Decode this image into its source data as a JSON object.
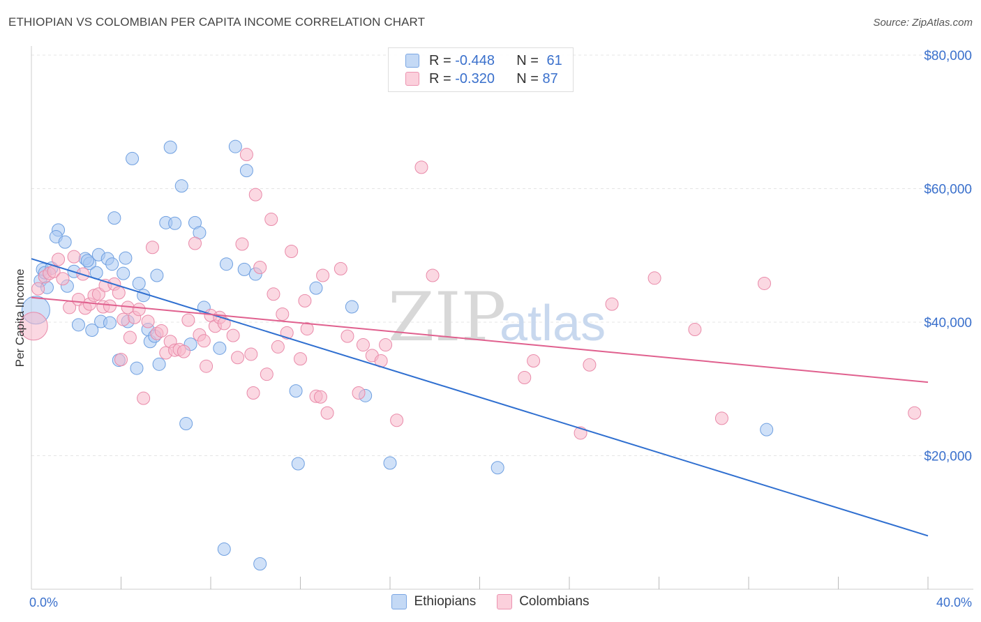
{
  "header": {
    "title": "ETHIOPIAN VS COLOMBIAN PER CAPITA INCOME CORRELATION CHART",
    "source": "Source: ZipAtlas.com"
  },
  "watermark": {
    "part1": "ZIP",
    "part2": "atlas"
  },
  "legend": {
    "rows": [
      {
        "r_label": "R =",
        "r_value": "-0.448",
        "n_label": "N =",
        "n_value": "61",
        "color": "#a9c8f2"
      },
      {
        "r_label": "R =",
        "r_value": "-0.320",
        "n_label": "N =",
        "n_value": "87",
        "color": "#f7b8cb"
      }
    ]
  },
  "bottom_legend": [
    {
      "label": "Ethiopians",
      "color": "#a9c8f2"
    },
    {
      "label": "Colombians",
      "color": "#f7b8cb"
    }
  ],
  "chart_data": {
    "type": "scatter",
    "title": "ETHIOPIAN VS COLOMBIAN PER CAPITA INCOME CORRELATION CHART",
    "xlabel": "",
    "ylabel": "Per Capita Income",
    "xlim": [
      0,
      40
    ],
    "ylim": [
      0,
      80000
    ],
    "x_tick_labels": [
      "0.0%",
      "40.0%"
    ],
    "y_ticks": [
      20000,
      40000,
      60000,
      80000
    ],
    "y_tick_labels": [
      "$20,000",
      "$40,000",
      "$60,000",
      "$80,000"
    ],
    "grid": true,
    "series": [
      {
        "name": "Ethiopians",
        "color": "#6e9fe0",
        "fill": "#a9c8f2",
        "trend": {
          "x": [
            0,
            40
          ],
          "y": [
            49500,
            8000
          ],
          "color": "#2f6fd0"
        },
        "points": [
          [
            0.2,
            41800
          ],
          [
            0.4,
            46200
          ],
          [
            0.5,
            47900
          ],
          [
            0.6,
            47400
          ],
          [
            0.7,
            45200
          ],
          [
            0.9,
            48100
          ],
          [
            1.2,
            53800
          ],
          [
            1.1,
            52800
          ],
          [
            1.5,
            52000
          ],
          [
            1.6,
            45400
          ],
          [
            1.9,
            47600
          ],
          [
            2.1,
            39600
          ],
          [
            2.4,
            49500
          ],
          [
            2.6,
            48800
          ],
          [
            2.7,
            38800
          ],
          [
            2.9,
            47400
          ],
          [
            3.0,
            50100
          ],
          [
            3.1,
            40100
          ],
          [
            3.4,
            49500
          ],
          [
            3.5,
            39900
          ],
          [
            3.6,
            48700
          ],
          [
            3.7,
            55600
          ],
          [
            3.9,
            34300
          ],
          [
            4.1,
            47300
          ],
          [
            4.2,
            49600
          ],
          [
            4.3,
            40100
          ],
          [
            4.5,
            64500
          ],
          [
            4.7,
            33100
          ],
          [
            4.8,
            45800
          ],
          [
            5.0,
            44000
          ],
          [
            5.2,
            38900
          ],
          [
            5.3,
            37100
          ],
          [
            5.5,
            37900
          ],
          [
            5.6,
            47000
          ],
          [
            5.7,
            33700
          ],
          [
            6.0,
            54900
          ],
          [
            6.2,
            66200
          ],
          [
            6.4,
            54800
          ],
          [
            6.7,
            60400
          ],
          [
            6.9,
            24800
          ],
          [
            7.1,
            36700
          ],
          [
            7.3,
            54900
          ],
          [
            7.5,
            53400
          ],
          [
            7.7,
            42200
          ],
          [
            8.4,
            36100
          ],
          [
            8.7,
            48700
          ],
          [
            9.1,
            66300
          ],
          [
            9.5,
            47900
          ],
          [
            9.6,
            62700
          ],
          [
            10.0,
            47200
          ],
          [
            10.2,
            3800
          ],
          [
            11.8,
            29700
          ],
          [
            11.9,
            18800
          ],
          [
            12.7,
            45100
          ],
          [
            14.3,
            42300
          ],
          [
            14.9,
            29000
          ],
          [
            16.0,
            18900
          ],
          [
            20.8,
            18200
          ],
          [
            8.6,
            6000
          ],
          [
            32.8,
            23900
          ],
          [
            2.5,
            49200
          ]
        ]
      },
      {
        "name": "Colombians",
        "color": "#e98aa9",
        "fill": "#f7b8cb",
        "trend": {
          "x": [
            0,
            40
          ],
          "y": [
            43700,
            31000
          ],
          "color": "#e0608e"
        },
        "points": [
          [
            0.1,
            39400
          ],
          [
            0.3,
            45000
          ],
          [
            0.6,
            46800
          ],
          [
            0.8,
            47300
          ],
          [
            1.0,
            47600
          ],
          [
            1.2,
            49400
          ],
          [
            1.4,
            46500
          ],
          [
            1.7,
            42200
          ],
          [
            1.9,
            49800
          ],
          [
            2.1,
            43400
          ],
          [
            2.3,
            47200
          ],
          [
            2.4,
            42100
          ],
          [
            2.6,
            42700
          ],
          [
            2.8,
            44000
          ],
          [
            3.0,
            44200
          ],
          [
            3.2,
            42300
          ],
          [
            3.3,
            45500
          ],
          [
            3.5,
            42400
          ],
          [
            3.7,
            45700
          ],
          [
            3.9,
            44400
          ],
          [
            4.0,
            34400
          ],
          [
            4.1,
            40400
          ],
          [
            4.3,
            42200
          ],
          [
            4.4,
            37700
          ],
          [
            4.6,
            40700
          ],
          [
            4.8,
            41900
          ],
          [
            5.0,
            28600
          ],
          [
            5.2,
            40100
          ],
          [
            5.4,
            51200
          ],
          [
            5.6,
            38300
          ],
          [
            5.8,
            38700
          ],
          [
            6.0,
            35400
          ],
          [
            6.2,
            37100
          ],
          [
            6.4,
            35800
          ],
          [
            6.6,
            35900
          ],
          [
            6.8,
            35600
          ],
          [
            7.0,
            40300
          ],
          [
            7.3,
            51800
          ],
          [
            7.5,
            38100
          ],
          [
            7.7,
            37200
          ],
          [
            7.8,
            33400
          ],
          [
            8.0,
            41000
          ],
          [
            8.2,
            39400
          ],
          [
            8.4,
            40700
          ],
          [
            8.6,
            39800
          ],
          [
            9.0,
            38000
          ],
          [
            9.2,
            34700
          ],
          [
            9.4,
            51700
          ],
          [
            9.6,
            65100
          ],
          [
            9.8,
            35200
          ],
          [
            10.0,
            59100
          ],
          [
            10.2,
            48200
          ],
          [
            10.5,
            32200
          ],
          [
            10.7,
            55400
          ],
          [
            10.8,
            44200
          ],
          [
            11.0,
            36300
          ],
          [
            11.2,
            41200
          ],
          [
            11.4,
            38400
          ],
          [
            11.6,
            50600
          ],
          [
            12.0,
            34500
          ],
          [
            12.2,
            43200
          ],
          [
            12.3,
            39000
          ],
          [
            12.7,
            28900
          ],
          [
            13.0,
            47000
          ],
          [
            13.2,
            26400
          ],
          [
            13.8,
            48000
          ],
          [
            14.1,
            37900
          ],
          [
            14.6,
            29400
          ],
          [
            14.8,
            36600
          ],
          [
            15.2,
            35000
          ],
          [
            15.6,
            34200
          ],
          [
            15.8,
            36600
          ],
          [
            16.3,
            25300
          ],
          [
            17.4,
            63200
          ],
          [
            17.9,
            47000
          ],
          [
            22.0,
            31700
          ],
          [
            22.4,
            34200
          ],
          [
            24.5,
            23400
          ],
          [
            24.9,
            33600
          ],
          [
            25.9,
            42700
          ],
          [
            27.8,
            46600
          ],
          [
            29.6,
            38900
          ],
          [
            30.8,
            25600
          ],
          [
            32.7,
            45800
          ],
          [
            39.4,
            26400
          ],
          [
            9.9,
            29400
          ],
          [
            12.9,
            28800
          ]
        ]
      }
    ]
  }
}
